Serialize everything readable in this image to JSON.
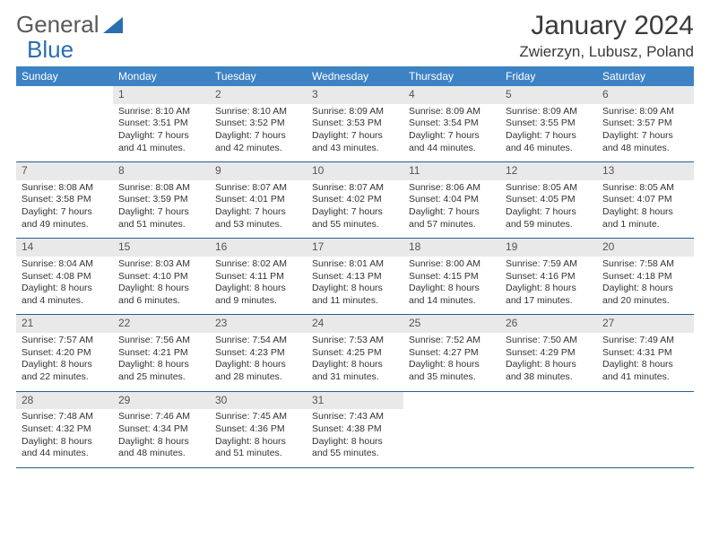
{
  "brand": {
    "part1": "General",
    "part2": "Blue",
    "triangle_color": "#2a6fb0"
  },
  "header": {
    "month_title": "January 2024",
    "location": "Zwierzyn, Lubusz, Poland"
  },
  "style": {
    "header_bg": "#3d83c4",
    "header_text": "#ffffff",
    "daynum_bg": "#e9e9e9",
    "border_color": "#2a5d8f",
    "title_fontsize": 30,
    "location_fontsize": 17,
    "th_fontsize": 12,
    "cell_fontsize": 10.5,
    "font_family": "Arial"
  },
  "weekdays": [
    "Sunday",
    "Monday",
    "Tuesday",
    "Wednesday",
    "Thursday",
    "Friday",
    "Saturday"
  ],
  "weeks": [
    [
      {
        "blank": true
      },
      {
        "day": "1",
        "sunrise": "Sunrise: 8:10 AM",
        "sunset": "Sunset: 3:51 PM",
        "daylight1": "Daylight: 7 hours",
        "daylight2": "and 41 minutes."
      },
      {
        "day": "2",
        "sunrise": "Sunrise: 8:10 AM",
        "sunset": "Sunset: 3:52 PM",
        "daylight1": "Daylight: 7 hours",
        "daylight2": "and 42 minutes."
      },
      {
        "day": "3",
        "sunrise": "Sunrise: 8:09 AM",
        "sunset": "Sunset: 3:53 PM",
        "daylight1": "Daylight: 7 hours",
        "daylight2": "and 43 minutes."
      },
      {
        "day": "4",
        "sunrise": "Sunrise: 8:09 AM",
        "sunset": "Sunset: 3:54 PM",
        "daylight1": "Daylight: 7 hours",
        "daylight2": "and 44 minutes."
      },
      {
        "day": "5",
        "sunrise": "Sunrise: 8:09 AM",
        "sunset": "Sunset: 3:55 PM",
        "daylight1": "Daylight: 7 hours",
        "daylight2": "and 46 minutes."
      },
      {
        "day": "6",
        "sunrise": "Sunrise: 8:09 AM",
        "sunset": "Sunset: 3:57 PM",
        "daylight1": "Daylight: 7 hours",
        "daylight2": "and 48 minutes."
      }
    ],
    [
      {
        "day": "7",
        "sunrise": "Sunrise: 8:08 AM",
        "sunset": "Sunset: 3:58 PM",
        "daylight1": "Daylight: 7 hours",
        "daylight2": "and 49 minutes."
      },
      {
        "day": "8",
        "sunrise": "Sunrise: 8:08 AM",
        "sunset": "Sunset: 3:59 PM",
        "daylight1": "Daylight: 7 hours",
        "daylight2": "and 51 minutes."
      },
      {
        "day": "9",
        "sunrise": "Sunrise: 8:07 AM",
        "sunset": "Sunset: 4:01 PM",
        "daylight1": "Daylight: 7 hours",
        "daylight2": "and 53 minutes."
      },
      {
        "day": "10",
        "sunrise": "Sunrise: 8:07 AM",
        "sunset": "Sunset: 4:02 PM",
        "daylight1": "Daylight: 7 hours",
        "daylight2": "and 55 minutes."
      },
      {
        "day": "11",
        "sunrise": "Sunrise: 8:06 AM",
        "sunset": "Sunset: 4:04 PM",
        "daylight1": "Daylight: 7 hours",
        "daylight2": "and 57 minutes."
      },
      {
        "day": "12",
        "sunrise": "Sunrise: 8:05 AM",
        "sunset": "Sunset: 4:05 PM",
        "daylight1": "Daylight: 7 hours",
        "daylight2": "and 59 minutes."
      },
      {
        "day": "13",
        "sunrise": "Sunrise: 8:05 AM",
        "sunset": "Sunset: 4:07 PM",
        "daylight1": "Daylight: 8 hours",
        "daylight2": "and 1 minute."
      }
    ],
    [
      {
        "day": "14",
        "sunrise": "Sunrise: 8:04 AM",
        "sunset": "Sunset: 4:08 PM",
        "daylight1": "Daylight: 8 hours",
        "daylight2": "and 4 minutes."
      },
      {
        "day": "15",
        "sunrise": "Sunrise: 8:03 AM",
        "sunset": "Sunset: 4:10 PM",
        "daylight1": "Daylight: 8 hours",
        "daylight2": "and 6 minutes."
      },
      {
        "day": "16",
        "sunrise": "Sunrise: 8:02 AM",
        "sunset": "Sunset: 4:11 PM",
        "daylight1": "Daylight: 8 hours",
        "daylight2": "and 9 minutes."
      },
      {
        "day": "17",
        "sunrise": "Sunrise: 8:01 AM",
        "sunset": "Sunset: 4:13 PM",
        "daylight1": "Daylight: 8 hours",
        "daylight2": "and 11 minutes."
      },
      {
        "day": "18",
        "sunrise": "Sunrise: 8:00 AM",
        "sunset": "Sunset: 4:15 PM",
        "daylight1": "Daylight: 8 hours",
        "daylight2": "and 14 minutes."
      },
      {
        "day": "19",
        "sunrise": "Sunrise: 7:59 AM",
        "sunset": "Sunset: 4:16 PM",
        "daylight1": "Daylight: 8 hours",
        "daylight2": "and 17 minutes."
      },
      {
        "day": "20",
        "sunrise": "Sunrise: 7:58 AM",
        "sunset": "Sunset: 4:18 PM",
        "daylight1": "Daylight: 8 hours",
        "daylight2": "and 20 minutes."
      }
    ],
    [
      {
        "day": "21",
        "sunrise": "Sunrise: 7:57 AM",
        "sunset": "Sunset: 4:20 PM",
        "daylight1": "Daylight: 8 hours",
        "daylight2": "and 22 minutes."
      },
      {
        "day": "22",
        "sunrise": "Sunrise: 7:56 AM",
        "sunset": "Sunset: 4:21 PM",
        "daylight1": "Daylight: 8 hours",
        "daylight2": "and 25 minutes."
      },
      {
        "day": "23",
        "sunrise": "Sunrise: 7:54 AM",
        "sunset": "Sunset: 4:23 PM",
        "daylight1": "Daylight: 8 hours",
        "daylight2": "and 28 minutes."
      },
      {
        "day": "24",
        "sunrise": "Sunrise: 7:53 AM",
        "sunset": "Sunset: 4:25 PM",
        "daylight1": "Daylight: 8 hours",
        "daylight2": "and 31 minutes."
      },
      {
        "day": "25",
        "sunrise": "Sunrise: 7:52 AM",
        "sunset": "Sunset: 4:27 PM",
        "daylight1": "Daylight: 8 hours",
        "daylight2": "and 35 minutes."
      },
      {
        "day": "26",
        "sunrise": "Sunrise: 7:50 AM",
        "sunset": "Sunset: 4:29 PM",
        "daylight1": "Daylight: 8 hours",
        "daylight2": "and 38 minutes."
      },
      {
        "day": "27",
        "sunrise": "Sunrise: 7:49 AM",
        "sunset": "Sunset: 4:31 PM",
        "daylight1": "Daylight: 8 hours",
        "daylight2": "and 41 minutes."
      }
    ],
    [
      {
        "day": "28",
        "sunrise": "Sunrise: 7:48 AM",
        "sunset": "Sunset: 4:32 PM",
        "daylight1": "Daylight: 8 hours",
        "daylight2": "and 44 minutes."
      },
      {
        "day": "29",
        "sunrise": "Sunrise: 7:46 AM",
        "sunset": "Sunset: 4:34 PM",
        "daylight1": "Daylight: 8 hours",
        "daylight2": "and 48 minutes."
      },
      {
        "day": "30",
        "sunrise": "Sunrise: 7:45 AM",
        "sunset": "Sunset: 4:36 PM",
        "daylight1": "Daylight: 8 hours",
        "daylight2": "and 51 minutes."
      },
      {
        "day": "31",
        "sunrise": "Sunrise: 7:43 AM",
        "sunset": "Sunset: 4:38 PM",
        "daylight1": "Daylight: 8 hours",
        "daylight2": "and 55 minutes."
      },
      {
        "blank": true
      },
      {
        "blank": true
      },
      {
        "blank": true
      }
    ]
  ]
}
